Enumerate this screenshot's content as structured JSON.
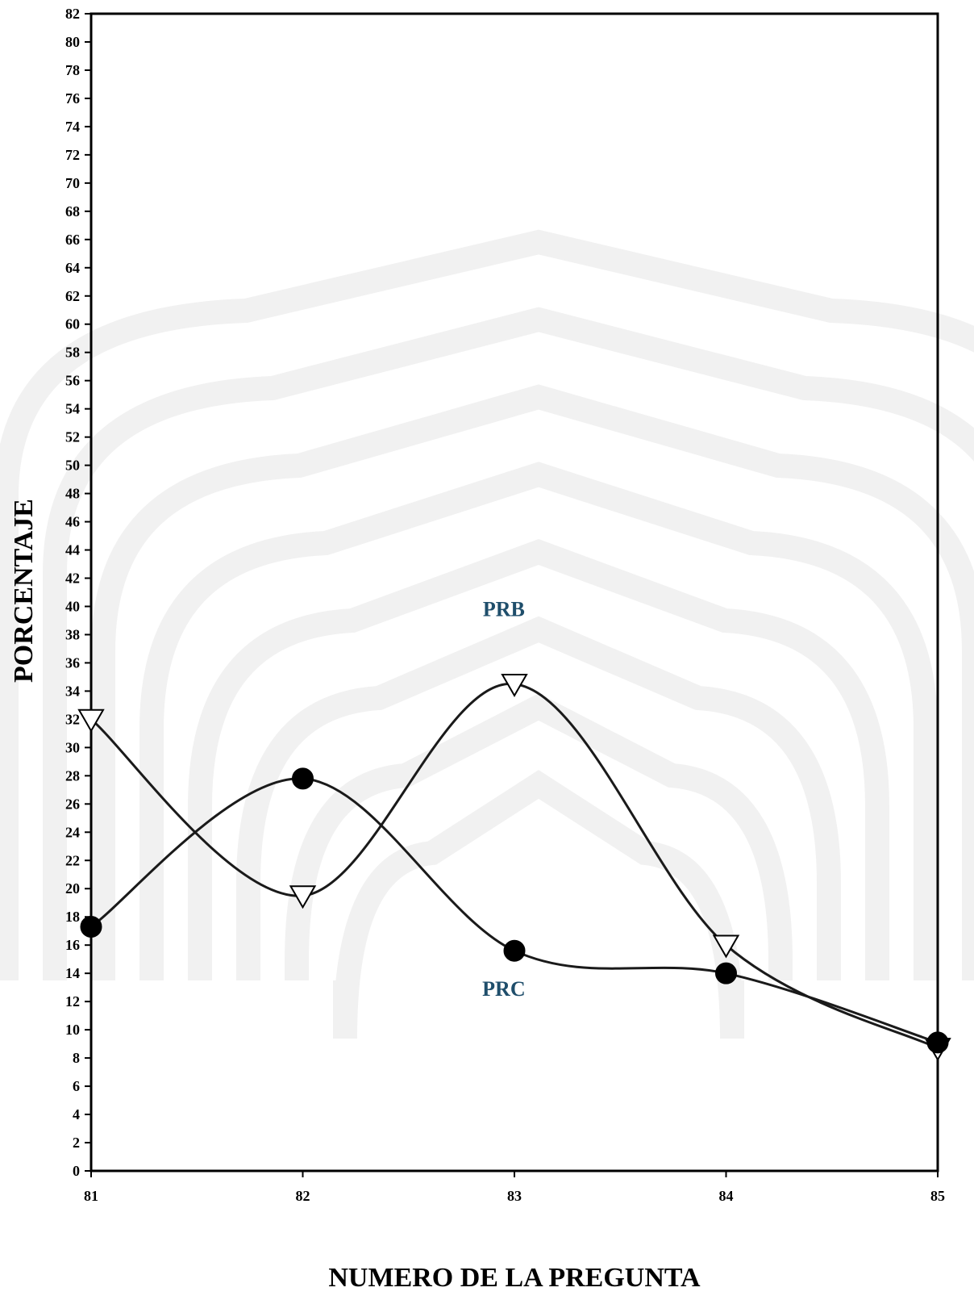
{
  "chart_data": {
    "type": "line",
    "xlabel": "NUMERO DE LA PREGUNTA",
    "ylabel": "PORCENTAJE",
    "x": [
      81,
      82,
      83,
      84,
      85
    ],
    "ylim": [
      0,
      82
    ],
    "ytick_step": 2,
    "grid": false,
    "smooth": true,
    "series": [
      {
        "name": "PRB",
        "marker": "triangle-down-open",
        "values": [
          32,
          19.5,
          34.5,
          16,
          8.7
        ]
      },
      {
        "name": "PRC",
        "marker": "circle-filled",
        "values": [
          17.3,
          27.8,
          15.6,
          14,
          9.1
        ]
      }
    ],
    "annotations": [
      {
        "text": "PRB",
        "x": 82.95,
        "y": 39.3
      },
      {
        "text": "PRC",
        "x": 82.95,
        "y": 12.4
      }
    ],
    "colors": {
      "axis": "#000000",
      "line": "#1a1a1a",
      "label": "#1f4e6b",
      "watermark": "#f1f1f1"
    }
  }
}
